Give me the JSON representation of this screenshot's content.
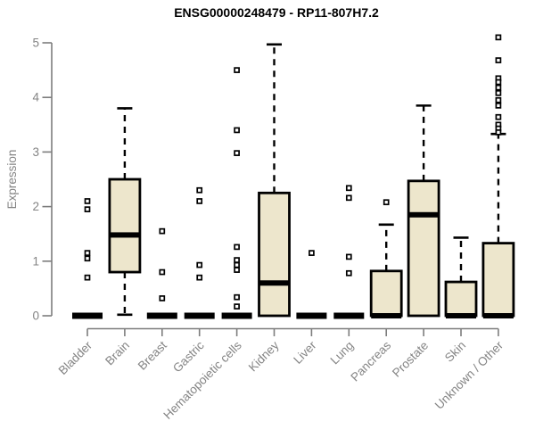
{
  "chart_data": {
    "type": "boxplot",
    "title": "ENSG00000248479 - RP11-807H7.2",
    "ylabel": "Expression",
    "xlabel": "",
    "ylim": [
      0,
      5
    ],
    "yticks": [
      0,
      1,
      2,
      3,
      4,
      5
    ],
    "grid": false,
    "legend": "none",
    "categories": [
      "Bladder",
      "Brain",
      "Breast",
      "Gastric",
      "Hematopoietic cells",
      "Kidney",
      "Liver",
      "Lung",
      "Pancreas",
      "Prostate",
      "Skin",
      "Unknown / Other"
    ],
    "boxes": [
      {
        "category": "Bladder",
        "low": 0,
        "q1": 0,
        "median": 0,
        "q3": 0,
        "high": 0,
        "outliers": [
          2.1,
          1.95,
          1.15,
          1.05,
          0.7
        ]
      },
      {
        "category": "Brain",
        "low": 0.02,
        "q1": 0.8,
        "median": 1.48,
        "q3": 2.5,
        "high": 3.8,
        "outliers": []
      },
      {
        "category": "Breast",
        "low": 0,
        "q1": 0,
        "median": 0,
        "q3": 0,
        "high": 0,
        "outliers": [
          1.55,
          0.8,
          0.32
        ]
      },
      {
        "category": "Gastric",
        "low": 0,
        "q1": 0,
        "median": 0,
        "q3": 0,
        "high": 0,
        "outliers": [
          2.3,
          2.1,
          0.93,
          0.7
        ]
      },
      {
        "category": "Hematopoietic cells",
        "low": 0,
        "q1": 0,
        "median": 0,
        "q3": 0,
        "high": 0,
        "outliers": [
          4.5,
          3.4,
          2.98,
          1.26,
          1.02,
          0.93,
          0.84,
          0.34,
          0.17
        ]
      },
      {
        "category": "Kidney",
        "low": 0,
        "q1": 0,
        "median": 0.6,
        "q3": 2.25,
        "high": 4.97,
        "outliers": []
      },
      {
        "category": "Liver",
        "low": 0,
        "q1": 0,
        "median": 0,
        "q3": 0,
        "high": 0,
        "outliers": [
          1.15
        ]
      },
      {
        "category": "Lung",
        "low": 0,
        "q1": 0,
        "median": 0,
        "q3": 0,
        "high": 0,
        "outliers": [
          2.34,
          2.16,
          1.08,
          0.78
        ]
      },
      {
        "category": "Pancreas",
        "low": 0,
        "q1": 0,
        "median": 0,
        "q3": 0.82,
        "high": 1.67,
        "outliers": [
          2.08
        ]
      },
      {
        "category": "Prostate",
        "low": 0,
        "q1": 0,
        "median": 1.85,
        "q3": 2.47,
        "high": 3.85,
        "outliers": []
      },
      {
        "category": "Skin",
        "low": 0,
        "q1": 0,
        "median": 0,
        "q3": 0.62,
        "high": 1.43,
        "outliers": []
      },
      {
        "category": "Unknown / Other",
        "low": 0,
        "q1": 0,
        "median": 0,
        "q3": 1.33,
        "high": 3.33,
        "outliers": [
          5.1,
          4.68,
          4.35,
          4.28,
          4.18,
          4.08,
          3.95,
          3.85,
          3.64,
          3.5,
          3.43,
          3.36
        ]
      }
    ],
    "style": {
      "background": "#ffffff",
      "box_fill": "#ede6cc",
      "box_stroke": "#000000",
      "median_color": "#000000",
      "whisker_color": "#000000",
      "outlier_marker": "open-square",
      "axis_color": "#7d7d7d",
      "tick_label_color": "#848484",
      "title_color": "#000000"
    }
  }
}
